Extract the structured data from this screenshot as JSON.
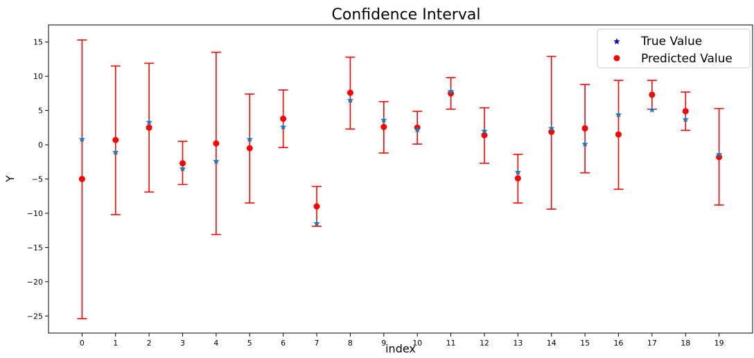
{
  "chart_data": {
    "type": "scatter",
    "title": "Confidence Interval",
    "xlabel": "index",
    "ylabel": "Y",
    "x": [
      0,
      1,
      2,
      3,
      4,
      5,
      6,
      7,
      8,
      9,
      10,
      11,
      12,
      13,
      14,
      15,
      16,
      17,
      18,
      19
    ],
    "xlim": [
      -1,
      20
    ],
    "ylim": [
      -27.5,
      17.5
    ],
    "yticks": [
      -25,
      -20,
      -15,
      -10,
      -5,
      0,
      5,
      10,
      15
    ],
    "ytick_labels": [
      "−25",
      "−20",
      "−15",
      "−10",
      "−5",
      "0",
      "5",
      "10",
      "15"
    ],
    "grid": false,
    "legend_position": "top-right",
    "series": [
      {
        "name": "True Value",
        "marker": "star",
        "values": [
          0.8,
          -1.1,
          3.3,
          -3.5,
          -2.4,
          0.8,
          2.6,
          -11.5,
          6.5,
          3.6,
          2.2,
          7.8,
          2.0,
          -4.0,
          2.4,
          0.1,
          4.4,
          5.1,
          3.7,
          -1.4
        ]
      },
      {
        "name": "Predicted Value",
        "marker": "circle",
        "values": [
          -5.0,
          0.7,
          2.5,
          -2.7,
          0.2,
          -0.5,
          3.8,
          -9.0,
          7.6,
          2.6,
          2.5,
          7.5,
          1.4,
          -4.9,
          1.9,
          2.4,
          1.5,
          7.3,
          4.9,
          -1.8
        ],
        "error_lower": [
          -25.4,
          -10.2,
          -6.9,
          -5.8,
          -13.1,
          -8.5,
          -0.4,
          -11.9,
          2.3,
          -1.2,
          0.1,
          5.2,
          -2.7,
          -8.5,
          -9.4,
          -4.1,
          -6.5,
          5.2,
          2.1,
          -8.8
        ],
        "error_upper": [
          15.3,
          11.5,
          11.9,
          0.5,
          13.5,
          7.4,
          8.0,
          -6.1,
          12.8,
          6.3,
          4.9,
          9.8,
          5.4,
          -1.4,
          12.9,
          8.8,
          9.4,
          9.4,
          7.7,
          5.3
        ]
      }
    ],
    "colors": {
      "true_marker": "#1f77b4",
      "true_legend_marker": "#0000cc",
      "predicted_marker": "#ff0000",
      "error_bar": "#ff0000",
      "axis": "#000000"
    }
  }
}
